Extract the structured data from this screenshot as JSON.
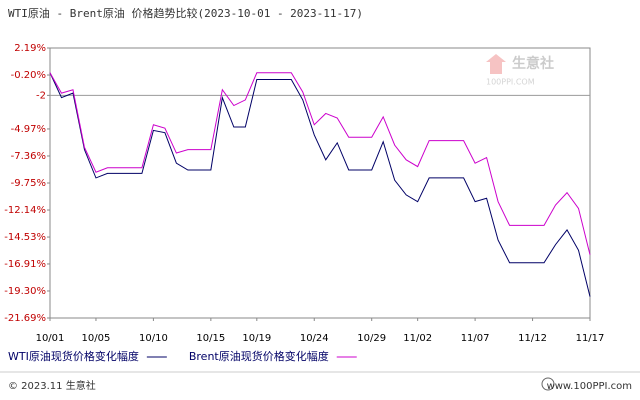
{
  "chart_data": {
    "type": "line",
    "title": "WTI原油 - Brent原油 价格趋势比较(2023-10-01 - 2023-11-17)",
    "categories": [
      "10/01",
      null,
      null,
      null,
      "10/05",
      null,
      null,
      null,
      null,
      "10/10",
      null,
      null,
      null,
      null,
      "10/15",
      null,
      null,
      null,
      "10/19",
      null,
      null,
      null,
      null,
      "10/24",
      null,
      null,
      null,
      null,
      "10/29",
      null,
      null,
      null,
      "11/02",
      null,
      null,
      null,
      null,
      "11/07",
      null,
      null,
      null,
      null,
      "11/12",
      null,
      null,
      null,
      null,
      "11/17"
    ],
    "series": [
      {
        "name": "WTI原油现货价格变化幅度",
        "color": "#000066",
        "values": [
          0,
          -2.2,
          -1.8,
          -6.8,
          -9.3,
          -8.9,
          -8.9,
          -8.9,
          -8.9,
          -5.1,
          -5.3,
          -8.0,
          -8.6,
          -8.6,
          -8.6,
          -2.2,
          -4.8,
          -4.8,
          -0.6,
          -0.6,
          -0.6,
          -0.6,
          -2.4,
          -5.5,
          -7.7,
          -6.2,
          -8.6,
          -8.6,
          -8.6,
          -6.1,
          -9.5,
          -10.8,
          -11.4,
          -9.3,
          -9.3,
          -9.3,
          -9.3,
          -11.4,
          -11.1,
          -14.8,
          -16.8,
          -16.8,
          -16.8,
          -16.8,
          -15.2,
          -13.9,
          -15.7,
          -19.8
        ]
      },
      {
        "name": "Brent原油现货价格变化幅度",
        "color": "#cc00cc",
        "values": [
          0,
          -1.8,
          -1.5,
          -6.6,
          -8.8,
          -8.4,
          -8.4,
          -8.4,
          -8.4,
          -4.6,
          -4.9,
          -7.1,
          -6.8,
          -6.8,
          -6.8,
          -1.5,
          -2.9,
          -2.4,
          0.0,
          0.0,
          0.0,
          0.0,
          -1.7,
          -4.6,
          -3.6,
          -4.0,
          -5.7,
          -5.7,
          -5.7,
          -3.9,
          -6.4,
          -7.7,
          -8.3,
          -6.0,
          -6.0,
          -6.0,
          -6.0,
          -8.0,
          -7.5,
          -11.4,
          -13.5,
          -13.5,
          -13.5,
          -13.5,
          -11.7,
          -10.6,
          -12.0,
          -16.1
        ]
      }
    ],
    "ylim": [
      -21.69,
      2.19
    ],
    "yticks": [
      {
        "value": 2.19,
        "label": "2.19%"
      },
      {
        "value": -0.2,
        "label": "-0.20%"
      },
      -2,
      {
        "value": -4.97,
        "label": "-4.97%"
      },
      {
        "value": -7.36,
        "label": "-7.36%"
      },
      {
        "value": -9.75,
        "label": "-9.75%"
      },
      {
        "value": -12.14,
        "label": "-12.14%"
      },
      {
        "value": -14.53,
        "label": "-14.53%"
      },
      {
        "value": -16.91,
        "label": "-16.91%"
      },
      {
        "value": -19.3,
        "label": "-19.30%"
      },
      {
        "value": -21.69,
        "label": "-21.69%"
      }
    ],
    "reference_line": -2,
    "grid": false,
    "watermark": "生意社",
    "watermark_sub": "100PPI.COM",
    "footer_left": "© 2023.11 生意社",
    "footer_right": "www.100PPI.com"
  }
}
